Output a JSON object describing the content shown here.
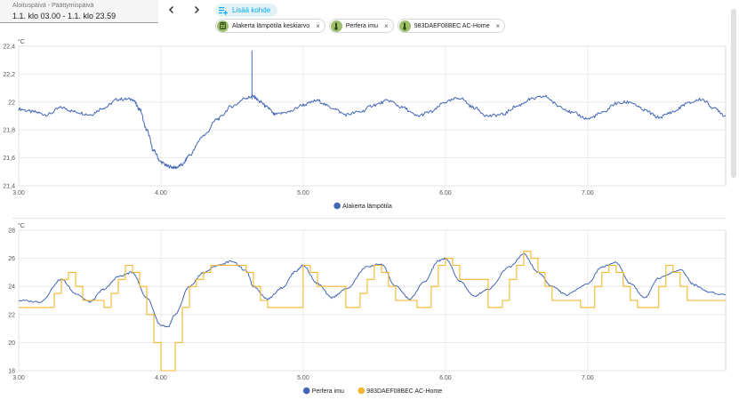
{
  "toolbar": {
    "date_range_label": "Aloituspäivä - Päättymispäivä",
    "date_range_value": "1.1. klo 03.00 - 1.1. klo 23.59",
    "prev_icon": "chevron-left-icon",
    "next_icon": "chevron-right-icon",
    "add_target_label": "Lisää kohde",
    "add_target_icon": "playlist-plus-icon",
    "chips": [
      {
        "label": "Alakerta lämpötila keskiarvo",
        "icon": "calculator-icon"
      },
      {
        "label": "Perfera imu",
        "icon": "thermometer-icon"
      },
      {
        "label": "983DAEF08BEC AC-Home",
        "icon": "thermometer-icon"
      }
    ],
    "chip_close_glyph": "×"
  },
  "colors": {
    "series_blue": "#4466b7",
    "series_yellow": "#f2b52c",
    "accent": "#03a9f4"
  },
  "chart_data": [
    {
      "type": "line",
      "unit": "°C",
      "xlim": [
        3.0,
        7.97
      ],
      "ylim": [
        21.4,
        22.4
      ],
      "x_ticks": [
        3,
        4,
        5,
        6,
        7
      ],
      "x_tick_labels": [
        "3.00",
        "4.00",
        "5.00",
        "6.00",
        "7.00"
      ],
      "y_ticks": [
        21.4,
        21.6,
        21.8,
        22.0,
        22.2,
        22.4
      ],
      "y_tick_labels": [
        "21,4",
        "21,6",
        "21,8",
        "22",
        "22,2",
        "22,4"
      ],
      "grid": true,
      "legend_position": "bottom-center",
      "series": [
        {
          "name": "Alakerta lämpötila",
          "color": "#4466b7",
          "x": [
            3.0,
            3.1,
            3.2,
            3.3,
            3.4,
            3.5,
            3.6,
            3.7,
            3.8,
            3.85,
            3.9,
            3.95,
            4.0,
            4.05,
            4.1,
            4.15,
            4.2,
            4.3,
            4.4,
            4.5,
            4.6,
            4.65,
            4.7,
            4.75,
            4.8,
            4.9,
            5.0,
            5.1,
            5.2,
            5.3,
            5.4,
            5.5,
            5.6,
            5.7,
            5.8,
            5.9,
            6.0,
            6.1,
            6.2,
            6.3,
            6.4,
            6.5,
            6.6,
            6.7,
            6.8,
            6.9,
            7.0,
            7.1,
            7.2,
            7.3,
            7.4,
            7.5,
            7.6,
            7.7,
            7.8,
            7.9,
            7.97
          ],
          "y": [
            21.95,
            21.93,
            21.91,
            21.96,
            21.93,
            21.91,
            21.96,
            22.02,
            22.02,
            21.95,
            21.8,
            21.65,
            21.57,
            21.54,
            21.53,
            21.55,
            21.62,
            21.76,
            21.88,
            21.97,
            22.03,
            22.04,
            22.0,
            21.96,
            21.91,
            21.93,
            21.98,
            22.01,
            21.96,
            21.91,
            21.93,
            21.98,
            22.01,
            21.96,
            21.9,
            21.93,
            22.0,
            22.03,
            21.96,
            21.9,
            21.91,
            21.97,
            22.02,
            22.04,
            21.97,
            21.92,
            21.88,
            21.92,
            21.99,
            22.0,
            21.94,
            21.89,
            21.93,
            21.99,
            22.02,
            21.95,
            21.9
          ]
        }
      ],
      "annotations": [
        {
          "type": "spike",
          "x": 4.64,
          "y": 22.37
        }
      ]
    },
    {
      "type": "line",
      "unit": "°C",
      "xlim": [
        3.0,
        7.97
      ],
      "ylim": [
        18,
        28
      ],
      "x_ticks": [
        3,
        4,
        5,
        6,
        7
      ],
      "x_tick_labels": [
        "3.00",
        "4.00",
        "5.00",
        "6.00",
        "7.00"
      ],
      "y_ticks": [
        18,
        20,
        22,
        24,
        26,
        28
      ],
      "y_tick_labels": [
        "18",
        "20",
        "22",
        "24",
        "26",
        "28"
      ],
      "grid": true,
      "legend_position": "bottom-center",
      "series": [
        {
          "name": "Perfera imu",
          "color": "#4466b7",
          "x": [
            3.0,
            3.15,
            3.3,
            3.4,
            3.5,
            3.6,
            3.7,
            3.8,
            3.9,
            4.0,
            4.05,
            4.1,
            4.2,
            4.3,
            4.4,
            4.5,
            4.6,
            4.65,
            4.75,
            4.85,
            4.95,
            5.0,
            5.1,
            5.2,
            5.3,
            5.45,
            5.55,
            5.65,
            5.75,
            5.85,
            5.95,
            6.0,
            6.1,
            6.2,
            6.3,
            6.45,
            6.55,
            6.65,
            6.75,
            6.85,
            7.0,
            7.1,
            7.2,
            7.3,
            7.4,
            7.5,
            7.65,
            7.75,
            7.85,
            7.97
          ],
          "y": [
            23.0,
            22.9,
            24.5,
            23.5,
            22.9,
            23.8,
            24.7,
            25.0,
            23.2,
            21.2,
            21.1,
            22.0,
            24.0,
            25.0,
            25.5,
            25.8,
            25.1,
            24.0,
            23.1,
            23.9,
            25.1,
            25.5,
            24.2,
            23.2,
            23.8,
            25.4,
            25.6,
            24.0,
            23.1,
            24.3,
            25.8,
            26.0,
            24.4,
            23.3,
            23.8,
            25.4,
            26.3,
            25.0,
            24.0,
            23.4,
            24.2,
            25.4,
            25.7,
            24.2,
            23.2,
            24.6,
            25.2,
            24.1,
            23.6,
            23.4
          ]
        },
        {
          "name": "983DAEF08BEC AC-Home",
          "color": "#f2b52c",
          "x": [
            3.0,
            3.2,
            3.25,
            3.3,
            3.35,
            3.4,
            3.45,
            3.6,
            3.65,
            3.7,
            3.75,
            3.8,
            3.85,
            3.9,
            3.95,
            4.0,
            4.05,
            4.1,
            4.15,
            4.2,
            4.25,
            4.3,
            4.35,
            4.4,
            4.5,
            4.6,
            4.65,
            4.7,
            4.75,
            4.95,
            5.0,
            5.05,
            5.1,
            5.3,
            5.4,
            5.45,
            5.5,
            5.55,
            5.6,
            5.65,
            5.8,
            5.9,
            5.95,
            6.0,
            6.05,
            6.1,
            6.3,
            6.4,
            6.45,
            6.5,
            6.55,
            6.6,
            6.65,
            6.7,
            6.75,
            6.95,
            7.05,
            7.1,
            7.15,
            7.2,
            7.25,
            7.3,
            7.35,
            7.5,
            7.55,
            7.6,
            7.65,
            7.7,
            7.97
          ],
          "y": [
            22.5,
            22.5,
            23.5,
            24.5,
            25.0,
            24.0,
            23.0,
            22.5,
            23.5,
            24.5,
            25.5,
            25.0,
            24.0,
            22.0,
            20.0,
            18.0,
            18.0,
            20.0,
            22.5,
            24.0,
            24.5,
            25.0,
            25.5,
            25.5,
            25.5,
            25.0,
            24.0,
            23.0,
            22.5,
            22.5,
            25.5,
            25.0,
            24.0,
            22.5,
            23.5,
            24.5,
            25.5,
            25.0,
            24.0,
            23.0,
            22.5,
            24.0,
            25.5,
            26.0,
            25.5,
            24.5,
            22.5,
            23.0,
            24.5,
            25.5,
            26.5,
            26.0,
            25.0,
            24.0,
            23.0,
            22.5,
            24.0,
            25.0,
            25.5,
            25.0,
            24.0,
            23.0,
            22.5,
            24.0,
            25.5,
            25.0,
            24.0,
            23.0,
            23.0
          ]
        }
      ]
    }
  ]
}
